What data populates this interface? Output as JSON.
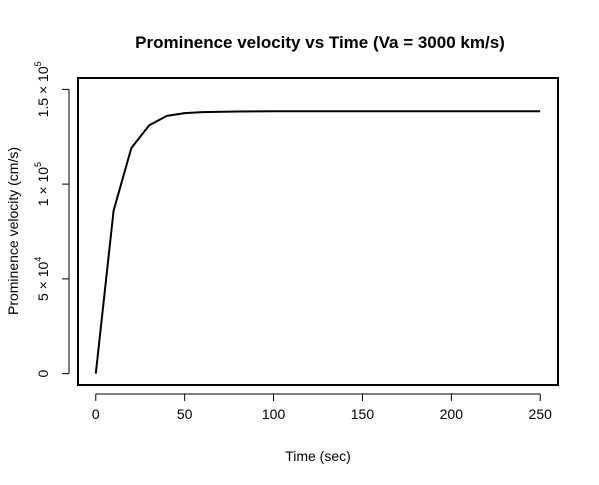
{
  "chart_data": {
    "type": "line",
    "title": "Prominence velocity vs Time (Va = 3000 km/s)",
    "xlabel": "Time (sec)",
    "ylabel": "Prominence velocity (cm/s)",
    "xlim": [
      -10,
      260
    ],
    "ylim": [
      -6000,
      156000
    ],
    "grid": false,
    "legend": "none",
    "x_ticks": [
      0,
      50,
      100,
      150,
      200,
      250
    ],
    "x_tick_labels": [
      "0",
      "50",
      "100",
      "150",
      "200",
      "250"
    ],
    "y_ticks": [
      {
        "value": 0,
        "mantissa": "0",
        "exponent": ""
      },
      {
        "value": 50000,
        "mantissa": "5 × 10",
        "exponent": "4"
      },
      {
        "value": 100000,
        "mantissa": "1 × 10",
        "exponent": "5"
      },
      {
        "value": 150000,
        "mantissa": "1.5 × 10",
        "exponent": "5"
      }
    ],
    "series": [
      {
        "color": "#000000",
        "x": [
          0,
          10,
          20,
          30,
          40,
          50,
          60,
          80,
          100,
          150,
          200,
          250
        ],
        "y": [
          0,
          86000,
          119000,
          131000,
          136000,
          137500,
          138000,
          138300,
          138500,
          138500,
          138500,
          138500
        ]
      }
    ]
  }
}
